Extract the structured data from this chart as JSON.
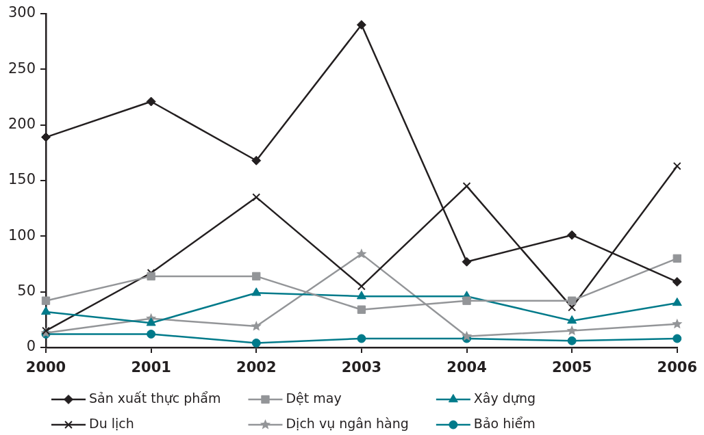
{
  "chart_data": {
    "type": "line",
    "categories": [
      "2000",
      "2001",
      "2002",
      "2003",
      "2004",
      "2005",
      "2006"
    ],
    "series": [
      {
        "name": "Sản xuất thực phẩm",
        "color": "#231f20",
        "marker": "diamond",
        "values": [
          189,
          221,
          168,
          290,
          77,
          101,
          59
        ]
      },
      {
        "name": "Dệt may",
        "color": "#939598",
        "marker": "square",
        "values": [
          42,
          64,
          64,
          34,
          42,
          42,
          80
        ]
      },
      {
        "name": "Xây dựng",
        "color": "#007a8a",
        "marker": "triangle",
        "values": [
          32,
          22,
          49,
          46,
          46,
          24,
          40
        ]
      },
      {
        "name": "Du lịch",
        "color": "#231f20",
        "marker": "cross",
        "values": [
          15,
          67,
          135,
          55,
          145,
          36,
          163
        ]
      },
      {
        "name": "Dịch vụ ngân hàng",
        "color": "#939598",
        "marker": "star",
        "values": [
          13,
          26,
          19,
          84,
          10,
          15,
          21
        ]
      },
      {
        "name": "Bảo hiểm",
        "color": "#007a8a",
        "marker": "circle",
        "values": [
          12,
          12,
          4,
          8,
          8,
          6,
          8
        ]
      }
    ],
    "ylim": [
      0,
      300
    ],
    "yticks": [
      0,
      50,
      100,
      150,
      200,
      250,
      300
    ],
    "grid": false,
    "legend": "bottom"
  }
}
